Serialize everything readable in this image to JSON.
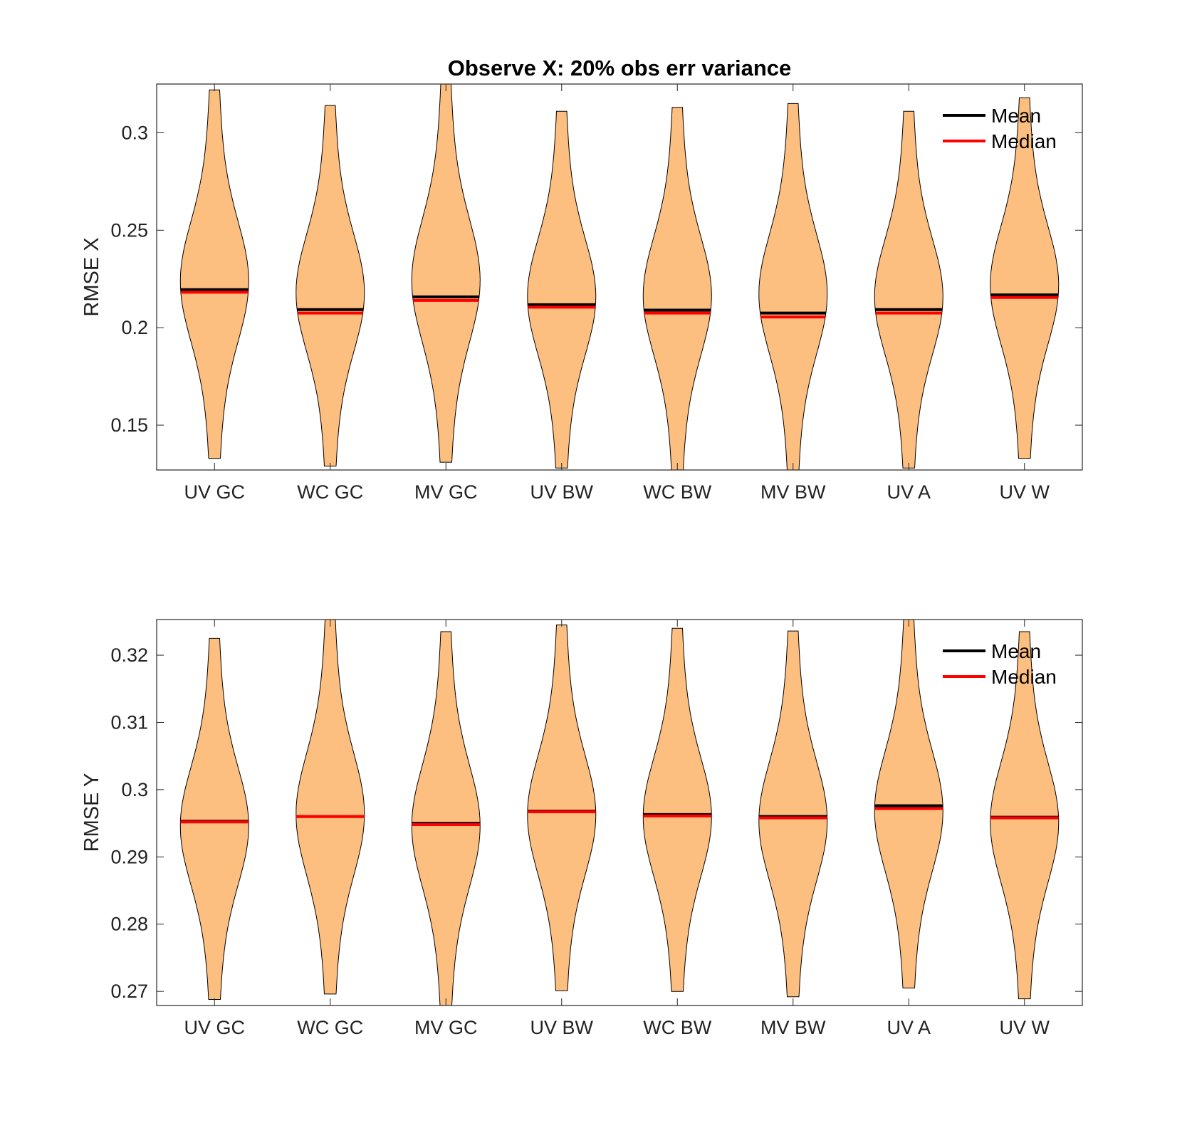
{
  "colors": {
    "violin_fill": "#fdbf80",
    "violin_edge": "#000000",
    "mean": "#000000",
    "median": "#ff0000",
    "axes": "#262626"
  },
  "chart_data": [
    {
      "type": "violin",
      "title": "Observe X: 20% obs err variance",
      "xlabel": "",
      "ylabel": "RMSE X",
      "ylim": [
        0.127,
        0.325
      ],
      "yticks": [
        0.15,
        0.2,
        0.25,
        0.3
      ],
      "ytick_labels": [
        "0.15",
        "0.2",
        "0.25",
        "0.3"
      ],
      "grid": false,
      "legend": {
        "position": "top-right",
        "entries": [
          {
            "label": "Mean",
            "color": "#000000"
          },
          {
            "label": "Median",
            "color": "#ff0000"
          }
        ]
      },
      "categories": [
        "UV GC",
        "WC GC",
        "MV GC",
        "UV BW",
        "WC BW",
        "MV BW",
        "UV A",
        "UV W"
      ],
      "series": [
        {
          "category": "UV GC",
          "min": 0.133,
          "max": 0.322,
          "mean": 0.2195,
          "median": 0.2182
        },
        {
          "category": "WC GC",
          "min": 0.129,
          "max": 0.314,
          "mean": 0.2093,
          "median": 0.2075
        },
        {
          "category": "MV GC",
          "min": 0.131,
          "max": 0.325,
          "mean": 0.2158,
          "median": 0.214
        },
        {
          "category": "UV BW",
          "min": 0.128,
          "max": 0.311,
          "mean": 0.2118,
          "median": 0.2105
        },
        {
          "category": "WC BW",
          "min": 0.127,
          "max": 0.313,
          "mean": 0.209,
          "median": 0.2075
        },
        {
          "category": "MV BW",
          "min": 0.127,
          "max": 0.315,
          "mean": 0.2075,
          "median": 0.2055
        },
        {
          "category": "UV A",
          "min": 0.128,
          "max": 0.311,
          "mean": 0.2093,
          "median": 0.2075
        },
        {
          "category": "UV W",
          "min": 0.133,
          "max": 0.318,
          "mean": 0.2168,
          "median": 0.2155
        }
      ]
    },
    {
      "type": "violin",
      "title": "",
      "xlabel": "",
      "ylabel": "RMSE Y",
      "ylim": [
        0.2679,
        0.3253
      ],
      "yticks": [
        0.27,
        0.28,
        0.29,
        0.3,
        0.31,
        0.32
      ],
      "ytick_labels": [
        "0.27",
        "0.28",
        "0.29",
        "0.3",
        "0.31",
        "0.32"
      ],
      "grid": false,
      "legend": {
        "position": "top-right",
        "entries": [
          {
            "label": "Mean",
            "color": "#000000"
          },
          {
            "label": "Median",
            "color": "#ff0000"
          }
        ]
      },
      "categories": [
        "UV GC",
        "WC GC",
        "MV GC",
        "UV BW",
        "WC BW",
        "MV BW",
        "UV A",
        "UV W"
      ],
      "series": [
        {
          "category": "UV GC",
          "min": 0.2688,
          "max": 0.3225,
          "mean": 0.2953,
          "median": 0.2952
        },
        {
          "category": "WC GC",
          "min": 0.2696,
          "max": 0.3253,
          "mean": 0.296,
          "median": 0.296
        },
        {
          "category": "MV GC",
          "min": 0.2679,
          "max": 0.3235,
          "mean": 0.295,
          "median": 0.2948
        },
        {
          "category": "UV BW",
          "min": 0.2701,
          "max": 0.3245,
          "mean": 0.2968,
          "median": 0.2967
        },
        {
          "category": "WC BW",
          "min": 0.27,
          "max": 0.324,
          "mean": 0.2963,
          "median": 0.2961
        },
        {
          "category": "MV BW",
          "min": 0.2692,
          "max": 0.3236,
          "mean": 0.296,
          "median": 0.2958
        },
        {
          "category": "UV A",
          "min": 0.2705,
          "max": 0.3253,
          "mean": 0.2976,
          "median": 0.2972
        },
        {
          "category": "UV W",
          "min": 0.2689,
          "max": 0.3235,
          "mean": 0.2959,
          "median": 0.2958
        }
      ]
    }
  ]
}
